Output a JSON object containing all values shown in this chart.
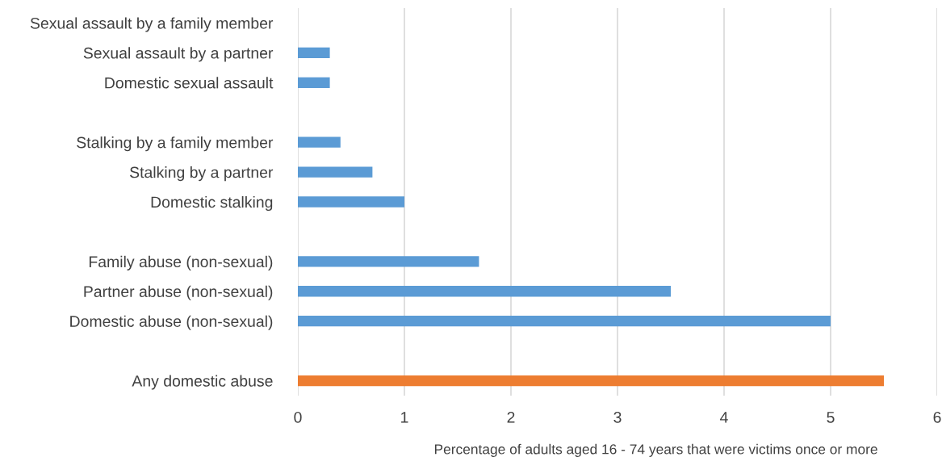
{
  "chart_data": {
    "type": "bar",
    "orientation": "horizontal",
    "categories": [
      "Sexual assault by a family member",
      "Sexual assault by a partner",
      "Domestic sexual assault",
      null,
      "Stalking by a family member",
      "Stalking by a partner",
      "Domestic stalking",
      null,
      "Family abuse (non-sexual)",
      "Partner abuse (non-sexual)",
      "Domestic abuse (non-sexual)",
      null,
      "Any domestic abuse"
    ],
    "values": [
      0,
      0.3,
      0.3,
      null,
      0.4,
      0.7,
      1.0,
      null,
      1.7,
      3.5,
      5.0,
      null,
      5.5
    ],
    "colors": [
      "#5b9bd5",
      "#5b9bd5",
      "#5b9bd5",
      "#5b9bd5",
      "#5b9bd5",
      "#5b9bd5",
      "#5b9bd5",
      "#5b9bd5",
      "#5b9bd5",
      "#5b9bd5",
      "#5b9bd5",
      "#5b9bd5",
      "#ed7d31"
    ],
    "xlim": [
      0,
      6
    ],
    "xticks": [
      0,
      1,
      2,
      3,
      4,
      5,
      6
    ],
    "xlabel": "Percentage of adults aged 16 - 74 years that were victims once or more",
    "grid": "x",
    "legend": false
  }
}
